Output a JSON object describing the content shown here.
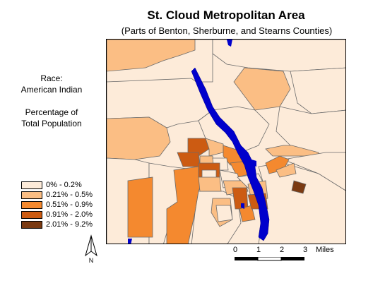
{
  "title": "St. Cloud Metropolitan Area",
  "subtitle": "(Parts of Benton, Sherburne, and Stearns Counties)",
  "side": {
    "race_label": "Race:",
    "race_value": "American Indian",
    "measure_line1": "Percentage of",
    "measure_line2": "Total Population"
  },
  "legend": [
    {
      "label": "0% - 0.2%",
      "color": "#fdebd9"
    },
    {
      "label": "0.21% - 0.5%",
      "color": "#fbbe84"
    },
    {
      "label": "0.51% - 0.9%",
      "color": "#f4892f"
    },
    {
      "label": "0.91% - 2.0%",
      "color": "#cc5b12"
    },
    {
      "label": "2.01% - 9.2%",
      "color": "#7b3a12"
    }
  ],
  "colors": {
    "water": "#0000cc",
    "outline": "#6b6b6b"
  },
  "north_label": "N",
  "scale": {
    "ticks": [
      "0",
      "1",
      "2",
      "3"
    ],
    "unit": "Miles"
  }
}
